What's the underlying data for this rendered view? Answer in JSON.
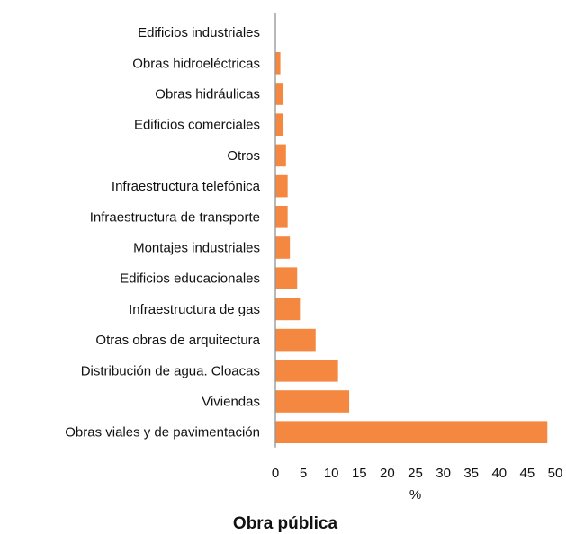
{
  "chart_data": {
    "type": "bar",
    "orientation": "horizontal",
    "title": "Obra pública",
    "xlabel": "%",
    "ylabel": "",
    "xlim": [
      0,
      50
    ],
    "xticks": [
      0,
      5,
      10,
      15,
      20,
      25,
      30,
      35,
      40,
      45,
      50
    ],
    "grid": false,
    "bar_color": "#F58840",
    "categories": [
      "Edificios industriales",
      "Obras hidroeléctricas",
      "Obras hidráulicas",
      "Edificios comerciales",
      "Otros",
      "Infraestructura telefónica",
      "Infraestructura de transporte",
      "Montajes industriales",
      "Edificios educacionales",
      "Infraestructura de gas",
      "Otras obras de arquitectura",
      "Distribución de agua. Cloacas",
      "Viviendas",
      "Obras viales y de pavimentación"
    ],
    "values": [
      0,
      0.8,
      1.2,
      1.2,
      1.8,
      2.1,
      2.1,
      2.5,
      3.8,
      4.3,
      7.1,
      11.1,
      13.1,
      48.5
    ]
  }
}
